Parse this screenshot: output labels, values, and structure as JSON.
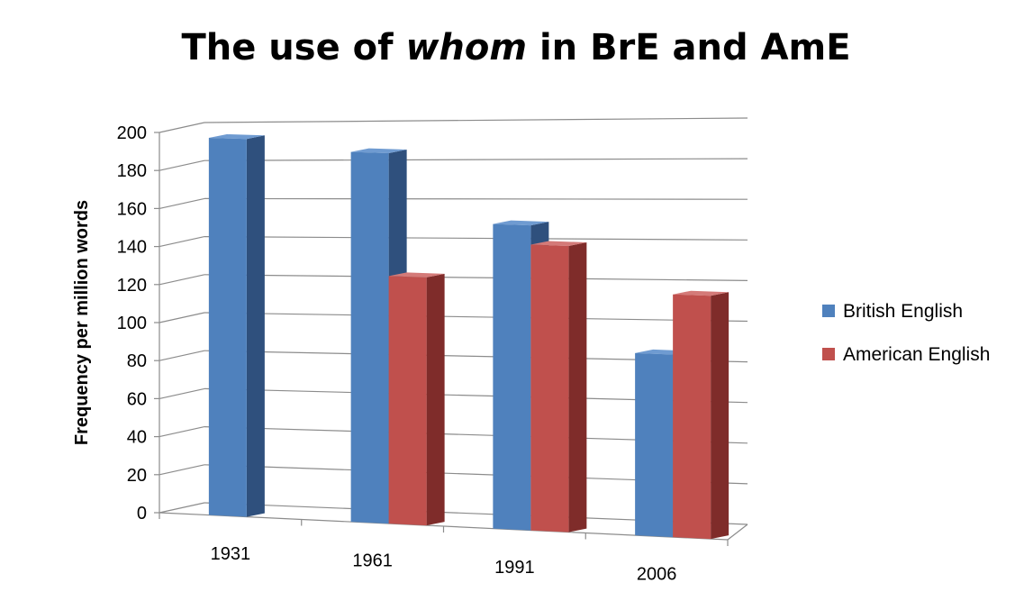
{
  "chart_data": {
    "type": "bar",
    "title_parts": [
      "The use of ",
      "whom",
      " in BrE and AmE"
    ],
    "xlabel": "",
    "ylabel": "Frequency per million words",
    "categories": [
      "1931",
      "1961",
      "1991",
      "2006"
    ],
    "series": [
      {
        "name": "British English",
        "values": [
          198,
          193,
          158,
          94
        ],
        "color": "#4f81bd",
        "side_color": "#2f507d",
        "top_color": "#6f9bd1"
      },
      {
        "name": "American English",
        "values": [
          null,
          129,
          148,
          125
        ],
        "color": "#c0504d",
        "side_color": "#7f2c2a",
        "top_color": "#d47a78"
      }
    ],
    "ylim": [
      0,
      200
    ],
    "yticks": [
      "0",
      "20",
      "40",
      "60",
      "80",
      "100",
      "120",
      "140",
      "160",
      "180",
      "200"
    ],
    "grid": true,
    "legend_position": "right",
    "style": "3d-clustered-column"
  }
}
